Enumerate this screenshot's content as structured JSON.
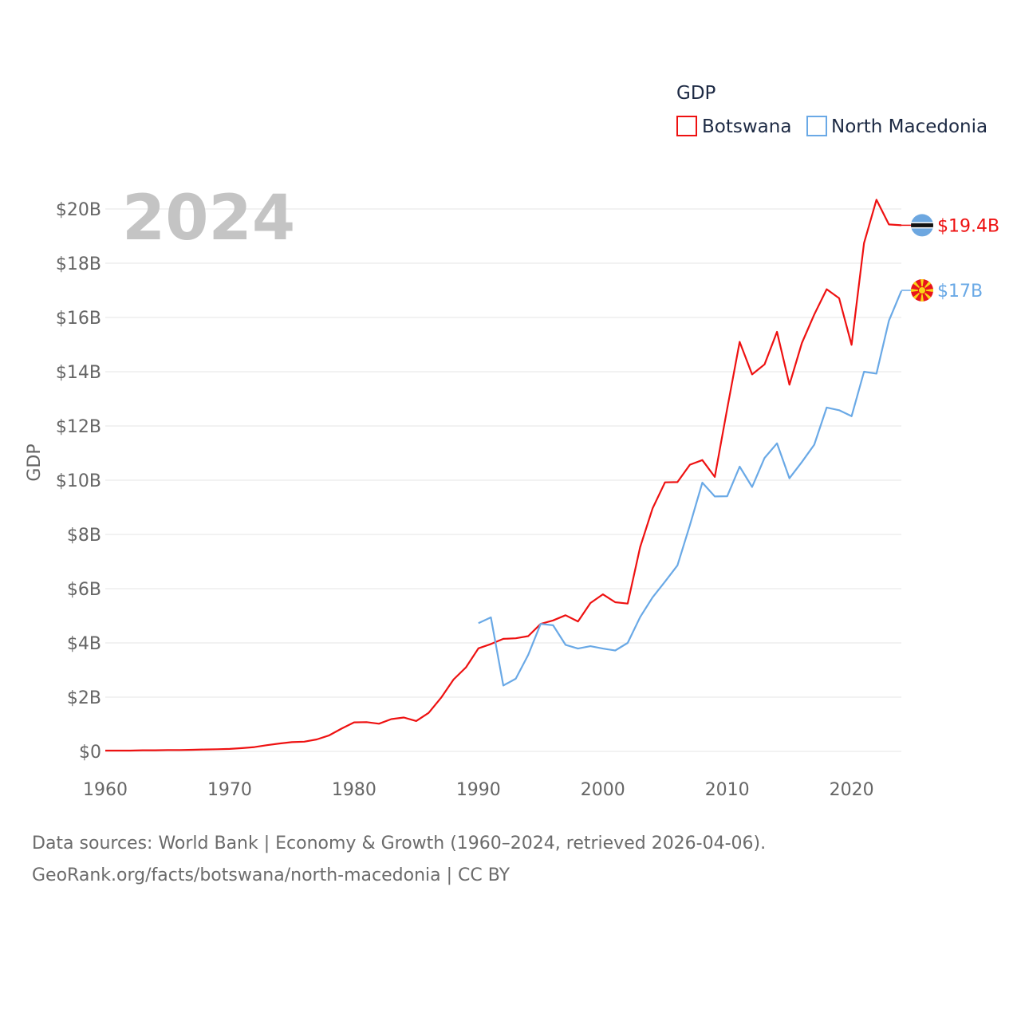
{
  "chart_data": {
    "type": "line",
    "legend_title": "GDP",
    "ylabel": "GDP",
    "year_label": "2024",
    "xlim": [
      1960,
      2024
    ],
    "ylim": [
      0,
      20
    ],
    "x_ticks": [
      "1960",
      "1970",
      "1980",
      "1990",
      "2000",
      "2010",
      "2020"
    ],
    "x_tick_values": [
      1960,
      1970,
      1980,
      1990,
      2000,
      2010,
      2020
    ],
    "y_ticks": [
      "$0",
      "$2B",
      "$4B",
      "$6B",
      "$8B",
      "$10B",
      "$12B",
      "$14B",
      "$16B",
      "$18B",
      "$20B"
    ],
    "y_tick_values": [
      0,
      2,
      4,
      6,
      8,
      10,
      12,
      14,
      16,
      18,
      20
    ],
    "unit": "billions USD",
    "series": [
      {
        "name": "Botswana",
        "color": "#ee1111",
        "end_label": "$19.4B",
        "end_value": 19.4,
        "flag_icon": "botswana-flag-icon",
        "x": [
          1960,
          1961,
          1962,
          1963,
          1964,
          1965,
          1966,
          1967,
          1968,
          1969,
          1970,
          1971,
          1972,
          1973,
          1974,
          1975,
          1976,
          1977,
          1978,
          1979,
          1980,
          1981,
          1982,
          1983,
          1984,
          1985,
          1986,
          1987,
          1988,
          1989,
          1990,
          1991,
          1992,
          1993,
          1994,
          1995,
          1996,
          1997,
          1998,
          1999,
          2000,
          2001,
          2002,
          2003,
          2004,
          2005,
          2006,
          2007,
          2008,
          2009,
          2010,
          2011,
          2012,
          2013,
          2014,
          2015,
          2016,
          2017,
          2018,
          2019,
          2020,
          2021,
          2022,
          2023,
          2024
        ],
        "values": [
          0.03,
          0.03,
          0.03,
          0.04,
          0.04,
          0.05,
          0.05,
          0.06,
          0.07,
          0.08,
          0.09,
          0.12,
          0.16,
          0.23,
          0.29,
          0.34,
          0.36,
          0.44,
          0.59,
          0.84,
          1.07,
          1.08,
          1.02,
          1.19,
          1.25,
          1.12,
          1.42,
          1.98,
          2.65,
          3.1,
          3.8,
          3.96,
          4.15,
          4.17,
          4.25,
          4.7,
          4.83,
          5.02,
          4.79,
          5.47,
          5.79,
          5.5,
          5.45,
          7.53,
          8.96,
          9.92,
          9.93,
          10.57,
          10.74,
          10.12,
          12.64,
          15.1,
          13.9,
          14.27,
          15.47,
          13.52,
          15.06,
          16.11,
          17.04,
          16.71,
          14.99,
          18.74,
          20.34,
          19.43,
          19.4
        ]
      },
      {
        "name": "North Macedonia",
        "color": "#6aa9e6",
        "end_label": "$17B",
        "end_value": 17.0,
        "flag_icon": "north-macedonia-flag-icon",
        "x": [
          1990,
          1991,
          1992,
          1993,
          1994,
          1995,
          1996,
          1997,
          1998,
          1999,
          2000,
          2001,
          2002,
          2003,
          2004,
          2005,
          2006,
          2007,
          2008,
          2009,
          2010,
          2011,
          2012,
          2013,
          2014,
          2015,
          2016,
          2017,
          2018,
          2019,
          2020,
          2021,
          2022,
          2023,
          2024
        ],
        "values": [
          4.73,
          4.94,
          2.43,
          2.68,
          3.56,
          4.7,
          4.65,
          3.93,
          3.79,
          3.88,
          3.79,
          3.72,
          4.0,
          4.95,
          5.68,
          6.26,
          6.86,
          8.34,
          9.91,
          9.4,
          9.41,
          10.5,
          9.75,
          10.82,
          11.36,
          10.07,
          10.67,
          11.31,
          12.68,
          12.58,
          12.36,
          14.0,
          13.93,
          15.88,
          16.98
        ]
      }
    ]
  },
  "footer": {
    "source_line": "Data sources: World Bank | Economy & Growth (1960–2024, retrieved 2026-04-06).",
    "url_line": "GeoRank.org/facts/botswana/north-macedonia | CC BY"
  }
}
